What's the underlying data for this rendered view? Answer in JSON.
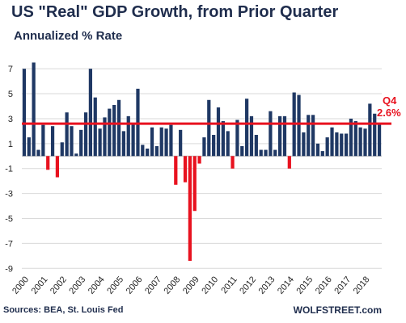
{
  "title": "US \"Real\" GDP Growth, from Prior Quarter",
  "subtitle": "Annualized % Rate",
  "source": "Sources: BEA, St. Louis Fed",
  "brand": "WOLFSTREET.com",
  "colors": {
    "positive": "#1f3864",
    "negative": "#e8121f",
    "reference": "#e8121f",
    "grid": "#d9d9d9",
    "text": "#1f2d4d"
  },
  "chart_data": {
    "type": "bar",
    "title": "US \"Real\" GDP Growth, from Prior Quarter",
    "subtitle": "Annualized % Rate",
    "xlabel": "",
    "ylabel": "",
    "ylim": [
      -9.5,
      8.5
    ],
    "yticks": [
      -9,
      -7,
      -5,
      -3,
      -1,
      1,
      3,
      5,
      7
    ],
    "grid": "horizontal",
    "x_tick_labels": [
      "2000",
      "2001",
      "2002",
      "2003",
      "2004",
      "2005",
      "2006",
      "2007",
      "2008",
      "2009",
      "2010",
      "2011",
      "2012",
      "2013",
      "2014",
      "2015",
      "2016",
      "2017",
      "2018"
    ],
    "series": [
      {
        "values": [
          7.0,
          1.5,
          7.5,
          0.5,
          2.5,
          -1.1,
          2.4,
          -1.7,
          1.1,
          3.5,
          2.4,
          0.2,
          2.1,
          3.5,
          7.0,
          4.7,
          2.2,
          3.1,
          3.8,
          4.1,
          4.5,
          2.0,
          3.2,
          2.6,
          5.4,
          0.9,
          0.6,
          2.3,
          0.8,
          2.3,
          2.2,
          2.5,
          -2.3,
          2.1,
          -2.1,
          -8.4,
          -4.4,
          -0.6,
          1.5,
          4.5,
          1.7,
          3.9,
          2.8,
          2.0,
          -1.0,
          2.9,
          0.8,
          4.6,
          3.2,
          1.7,
          0.5,
          0.5,
          3.6,
          0.5,
          3.2,
          3.2,
          -1.0,
          5.1,
          4.9,
          1.9,
          3.3,
          3.3,
          1.0,
          0.4,
          1.5,
          2.3,
          1.9,
          1.8,
          1.8,
          3.0,
          2.8,
          2.3,
          2.2,
          4.2,
          3.4,
          2.6
        ]
      }
    ],
    "reference_line": {
      "value": 2.6,
      "label_top": "Q4",
      "label_bottom": "2.6%"
    }
  }
}
